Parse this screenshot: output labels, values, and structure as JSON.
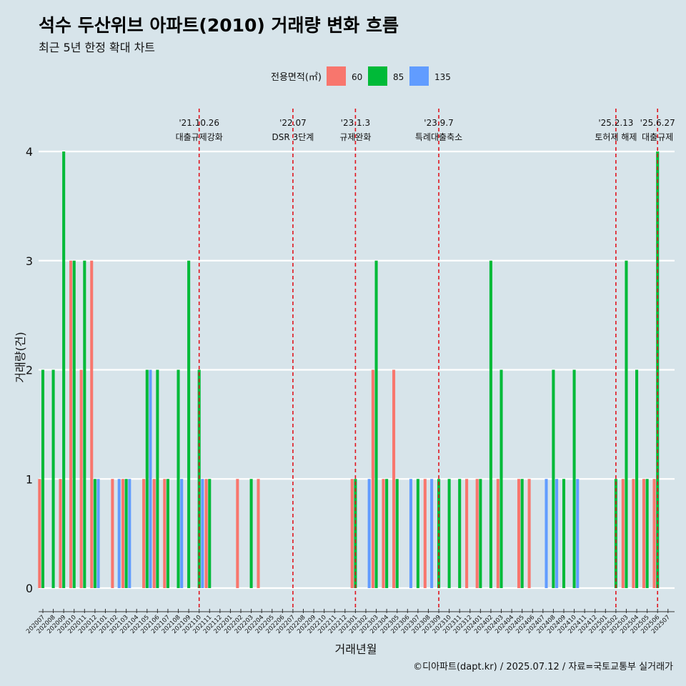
{
  "title": "석수 두산위브 아파트(2010) 거래량 변화 흐름",
  "subtitle": "최근 5년 한정 확대 차트",
  "credit": "©디아파트(dapt.kr) / 2025.07.12 / 자료=국토교통부 실거래가",
  "chart_data": {
    "type": "bar",
    "xlabel": "거래년월",
    "ylabel": "거래량(건)",
    "ylim": [
      0,
      4
    ],
    "yticks": [
      0,
      1,
      2,
      3,
      4
    ],
    "grid": true,
    "legend": {
      "title": "전용면적(㎡)",
      "position": "top"
    },
    "categories": [
      "202007",
      "202008",
      "202009",
      "202010",
      "202011",
      "202012",
      "202101",
      "202102",
      "202103",
      "202104",
      "202105",
      "202106",
      "202107",
      "202108",
      "202109",
      "202110",
      "202111",
      "202112",
      "202201",
      "202202",
      "202203",
      "202204",
      "202205",
      "202206",
      "202207",
      "202208",
      "202209",
      "202210",
      "202211",
      "202212",
      "202301",
      "202302",
      "202303",
      "202304",
      "202305",
      "202306",
      "202307",
      "202308",
      "202309",
      "202310",
      "202311",
      "202312",
      "202401",
      "202402",
      "202403",
      "202404",
      "202405",
      "202406",
      "202407",
      "202408",
      "202409",
      "202410",
      "202411",
      "202412",
      "202501",
      "202502",
      "202503",
      "202504",
      "202505",
      "202506",
      "202507"
    ],
    "series": [
      {
        "name": "60",
        "color": "#f8766d",
        "values": [
          1,
          0,
          1,
          3,
          2,
          3,
          0,
          1,
          1,
          0,
          1,
          1,
          1,
          0,
          0,
          0,
          1,
          0,
          0,
          1,
          0,
          1,
          0,
          0,
          0,
          0,
          0,
          0,
          0,
          0,
          1,
          0,
          2,
          1,
          2,
          0,
          0,
          1,
          0,
          0,
          0,
          1,
          1,
          0,
          1,
          0,
          1,
          1,
          0,
          0,
          0,
          0,
          0,
          0,
          0,
          0,
          1,
          1,
          1,
          1,
          0
        ]
      },
      {
        "name": "85",
        "color": "#00ba38",
        "values": [
          2,
          2,
          4,
          3,
          3,
          1,
          0,
          0,
          1,
          0,
          2,
          2,
          1,
          2,
          3,
          2,
          1,
          0,
          0,
          0,
          1,
          0,
          0,
          0,
          0,
          0,
          0,
          0,
          0,
          0,
          1,
          0,
          3,
          1,
          1,
          0,
          1,
          0,
          1,
          1,
          1,
          0,
          1,
          3,
          2,
          0,
          1,
          0,
          0,
          2,
          1,
          2,
          0,
          0,
          0,
          1,
          3,
          2,
          1,
          4,
          0
        ]
      },
      {
        "name": "135",
        "color": "#619cff",
        "values": [
          0,
          0,
          0,
          0,
          0,
          1,
          0,
          1,
          1,
          0,
          2,
          0,
          0,
          1,
          0,
          1,
          0,
          0,
          0,
          0,
          0,
          0,
          0,
          0,
          0,
          0,
          0,
          0,
          0,
          0,
          0,
          1,
          0,
          0,
          0,
          1,
          0,
          1,
          0,
          0,
          0,
          0,
          0,
          0,
          0,
          0,
          0,
          0,
          1,
          1,
          0,
          1,
          0,
          0,
          0,
          0,
          0,
          0,
          0,
          0,
          0
        ]
      }
    ],
    "annotations": [
      {
        "date": "'21.10.26",
        "label": "대출규제강화",
        "x": "202110"
      },
      {
        "date": "'22.07",
        "label": "DSR 3단계",
        "x": "202207"
      },
      {
        "date": "'23.1.3",
        "label": "규제완화",
        "x": "202301"
      },
      {
        "date": "'23.9.7",
        "label": "특례대출축소",
        "x": "202309"
      },
      {
        "date": "'25.2.13",
        "label": "토허제 해제",
        "x": "202502"
      },
      {
        "date": "'25.6.27",
        "label": "대출규제",
        "x": "202506"
      }
    ]
  }
}
